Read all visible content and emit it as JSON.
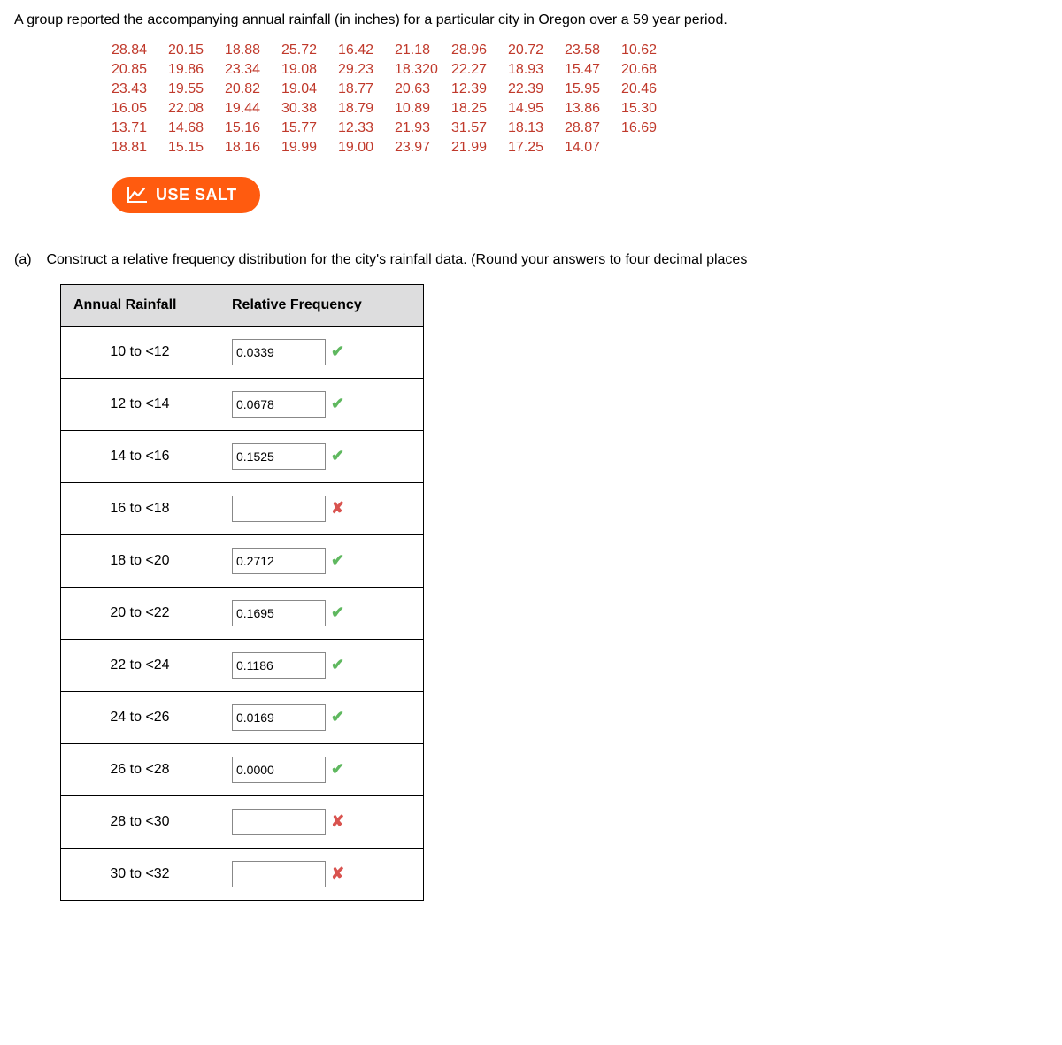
{
  "prompt_text": "A group reported the accompanying annual rainfall (in inches) for a particular city in Oregon over a 59 year period.",
  "data_rows": [
    [
      "28.84",
      "20.15",
      "18.88",
      "25.72",
      "16.42",
      "21.18",
      "28.96",
      "20.72",
      "23.58",
      "10.62"
    ],
    [
      "20.85",
      "19.86",
      "23.34",
      "19.08",
      "29.23",
      "18.320",
      "22.27",
      "18.93",
      "15.47",
      "20.68"
    ],
    [
      "23.43",
      "19.55",
      "20.82",
      "19.04",
      "18.77",
      "20.63",
      "12.39",
      "22.39",
      "15.95",
      "20.46"
    ],
    [
      "16.05",
      "22.08",
      "19.44",
      "30.38",
      "18.79",
      "10.89",
      "18.25",
      "14.95",
      "13.86",
      "15.30"
    ],
    [
      "13.71",
      "14.68",
      "15.16",
      "15.77",
      "12.33",
      "21.93",
      "31.57",
      "18.13",
      "28.87",
      "16.69"
    ],
    [
      "18.81",
      "15.15",
      "18.16",
      "19.99",
      "19.00",
      "23.97",
      "21.99",
      "17.25",
      "14.07",
      ""
    ]
  ],
  "data_color": "#c0392b",
  "salt_button_label": "USE SALT",
  "salt_button_bg": "#ff5b0f",
  "part_a_label": "(a)",
  "part_a_text": "Construct a relative frequency distribution for the city's rainfall data. (Round your answers to four decimal places",
  "table": {
    "header_range": "Annual Rainfall",
    "header_freq": "Relative Frequency",
    "header_bg": "#ddddde",
    "rows": [
      {
        "range": "10 to <12",
        "value": "0.0339",
        "status": "correct"
      },
      {
        "range": "12 to <14",
        "value": "0.0678",
        "status": "correct"
      },
      {
        "range": "14 to <16",
        "value": "0.1525",
        "status": "correct"
      },
      {
        "range": "16 to <18",
        "value": "",
        "status": "wrong"
      },
      {
        "range": "18 to <20",
        "value": "0.2712",
        "status": "correct"
      },
      {
        "range": "20 to <22",
        "value": "0.1695",
        "status": "correct"
      },
      {
        "range": "22 to <24",
        "value": "0.1186",
        "status": "correct"
      },
      {
        "range": "24 to <26",
        "value": "0.0169",
        "status": "correct"
      },
      {
        "range": "26 to <28",
        "value": "0.0000",
        "status": "correct"
      },
      {
        "range": "28 to <30",
        "value": "",
        "status": "wrong"
      },
      {
        "range": "30 to <32",
        "value": "",
        "status": "wrong"
      }
    ]
  },
  "status_icons": {
    "correct_color": "#5fb85f",
    "wrong_color": "#d9534f"
  }
}
